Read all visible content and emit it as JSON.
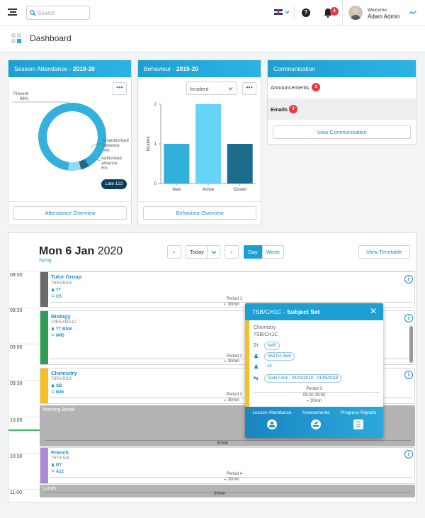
{
  "header": {
    "search_placeholder": "Search",
    "notification_count": "4",
    "welcome": "Welcome",
    "user_name": "Adam Admin"
  },
  "page": {
    "title": "Dashboard"
  },
  "attendance": {
    "title": "Session Attendance - ",
    "year": "2019-20",
    "present_label": "Present",
    "present_pct": "88%",
    "unauth_label": "Unauthorised absence",
    "unauth_l1": "Unauthorised",
    "unauth_l2": "absence",
    "unauth_pct": "4%",
    "auth_l1": "Authorised",
    "auth_l2": "absence",
    "auth_pct": "6%",
    "late_badge": "Late 122",
    "button": "Attendance Overview",
    "more": "•••"
  },
  "behaviour": {
    "title": "Behaviour - ",
    "year": "2019-20",
    "select_value": "Incident",
    "ylabel": "Incident",
    "button": "Behaviour Overview",
    "more": "•••"
  },
  "communication": {
    "title": "Communication",
    "announcements_label": "Announcements",
    "announcements_count": "1",
    "emails_label": "Emails",
    "emails_count": "3",
    "button": "View Communication"
  },
  "chart_data": [
    {
      "type": "pie",
      "labels": [
        "Present",
        "Unauthorised absence",
        "Authorised absence"
      ],
      "values": [
        88,
        4,
        6
      ],
      "colors": [
        "#33b0dc",
        "#1d6c8c",
        "#8fdcf5"
      ]
    },
    {
      "type": "bar",
      "categories": [
        "New",
        "Active",
        "Closed"
      ],
      "values": [
        1,
        2,
        1
      ],
      "ylabel": "Incident",
      "ylim": [
        0,
        2
      ],
      "yticks": [
        "0",
        "1",
        "2"
      ],
      "colors": [
        "#31b0dc",
        "#65d4f6",
        "#1b6b8a"
      ]
    }
  ],
  "timetable": {
    "date_bold": "Mon 6 Jan",
    "year": "2020",
    "term": "Spring",
    "today": "Today",
    "day": "Day",
    "week": "Week",
    "view_button": "View Timetable",
    "times": [
      "08:00",
      "08:30",
      "09:00",
      "09:30",
      "10:00",
      "10:30",
      "11:00"
    ],
    "lessons": [
      {
        "title": "Tutor Group",
        "code": "7BRJ/BI1B",
        "teacher": "TT",
        "room": "C5",
        "period": "Period 1",
        "duration": "30min",
        "color": "#6b6b6b"
      },
      {
        "title": "Biology",
        "code": "10BRJ/MA1C",
        "teacher": "TT  BSM",
        "room": "M45",
        "period": "Period 2",
        "duration": "30min",
        "color": "#2e9d55"
      },
      {
        "title": "Chemistry",
        "code": "7BRJ/BI1B",
        "teacher": "SB",
        "room": "B45",
        "period": "Period 3",
        "duration": "30min",
        "color": "#f5c024"
      },
      {
        "title": "French",
        "code": "7RT/FI1B",
        "teacher": "RT",
        "room": "A12",
        "period": "Period 4",
        "duration": "30min",
        "color": "#a98bd3"
      }
    ],
    "morning_break": {
      "label": "Morning Break",
      "duration": "30min"
    },
    "lunch": {
      "label": "Lunch",
      "duration": "30min"
    }
  },
  "popup": {
    "code": "7SB/CH1C",
    "kind": "Subject Set",
    "subject": "Chemistry",
    "set": "7SB/CH1C",
    "room": "M45",
    "teacher": "SMITH, Bob",
    "count": "14",
    "form": "Sixth Form : 04/01/2019 - 01/05/2019",
    "period": "Period 3",
    "time": "09:20-09:50",
    "duration": "30min",
    "actions": [
      "Lesson Attendance",
      "Assessments",
      "Progress Reports"
    ]
  }
}
